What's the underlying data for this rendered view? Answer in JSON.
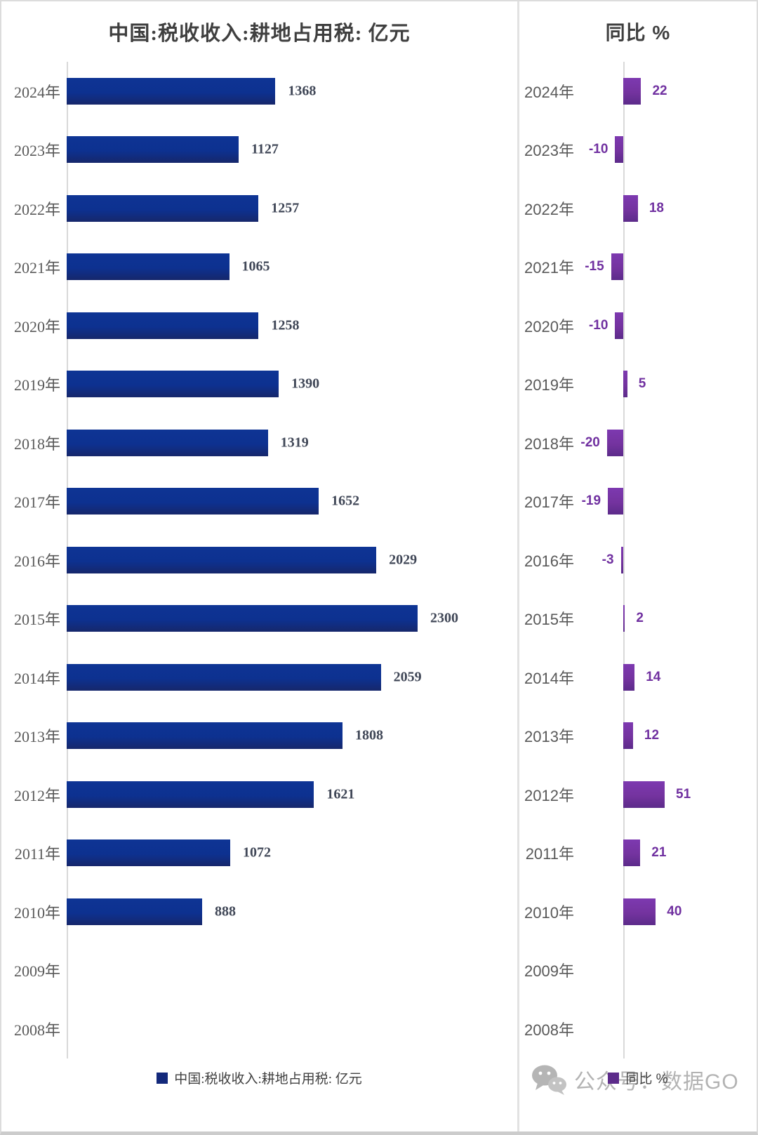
{
  "left_chart": {
    "title": "中国:税收收入:耕地占用税: 亿元",
    "legend_label": "中国:税收收入:耕地占用税: 亿元"
  },
  "right_chart": {
    "title": "同比 %",
    "legend_label": "同比 %"
  },
  "watermark": {
    "icon": "wechat-icon",
    "text": "公众号：数据GO"
  },
  "colors": {
    "navy_bar": "#0d3190",
    "navy_bar_dark": "#16276b",
    "purple_bar": "#7030a0",
    "purple_bar_dark": "#5c2b8a",
    "value_label_left": "#404757",
    "value_label_right": "#7030a0",
    "year_label": "#595959",
    "title": "#3f3f3f",
    "axis": "#d9d9d9",
    "watermark": "#b3b3b3"
  },
  "chart_data": [
    {
      "type": "bar",
      "orientation": "horizontal",
      "title": "中国:税收收入:耕地占用税: 亿元",
      "categories": [
        "2024年",
        "2023年",
        "2022年",
        "2021年",
        "2020年",
        "2019年",
        "2018年",
        "2017年",
        "2016年",
        "2015年",
        "2014年",
        "2013年",
        "2012年",
        "2011年",
        "2010年",
        "2009年",
        "2008年"
      ],
      "values": [
        1368,
        1127,
        1257,
        1065,
        1258,
        1390,
        1319,
        1652,
        2029,
        2300,
        2059,
        1808,
        1621,
        1072,
        888,
        null,
        null
      ],
      "xlabel": "",
      "ylabel": "",
      "xlim": [
        0,
        2300
      ],
      "grid": false,
      "data_labels": true,
      "legend": "中国:税收收入:耕地占用税: 亿元",
      "legend_position": "bottom"
    },
    {
      "type": "bar",
      "orientation": "horizontal",
      "title": "同比 %",
      "categories": [
        "2024年",
        "2023年",
        "2022年",
        "2021年",
        "2020年",
        "2019年",
        "2018年",
        "2017年",
        "2016年",
        "2015年",
        "2014年",
        "2013年",
        "2012年",
        "2011年",
        "2010年",
        "2009年",
        "2008年"
      ],
      "values": [
        22,
        -10,
        18,
        -15,
        -10,
        5,
        -20,
        -19,
        -3,
        2,
        14,
        12,
        51,
        21,
        40,
        null,
        null
      ],
      "xlabel": "",
      "ylabel": "",
      "xlim": [
        -20,
        51
      ],
      "grid": false,
      "data_labels": true,
      "legend": "同比 %",
      "legend_position": "bottom"
    }
  ]
}
